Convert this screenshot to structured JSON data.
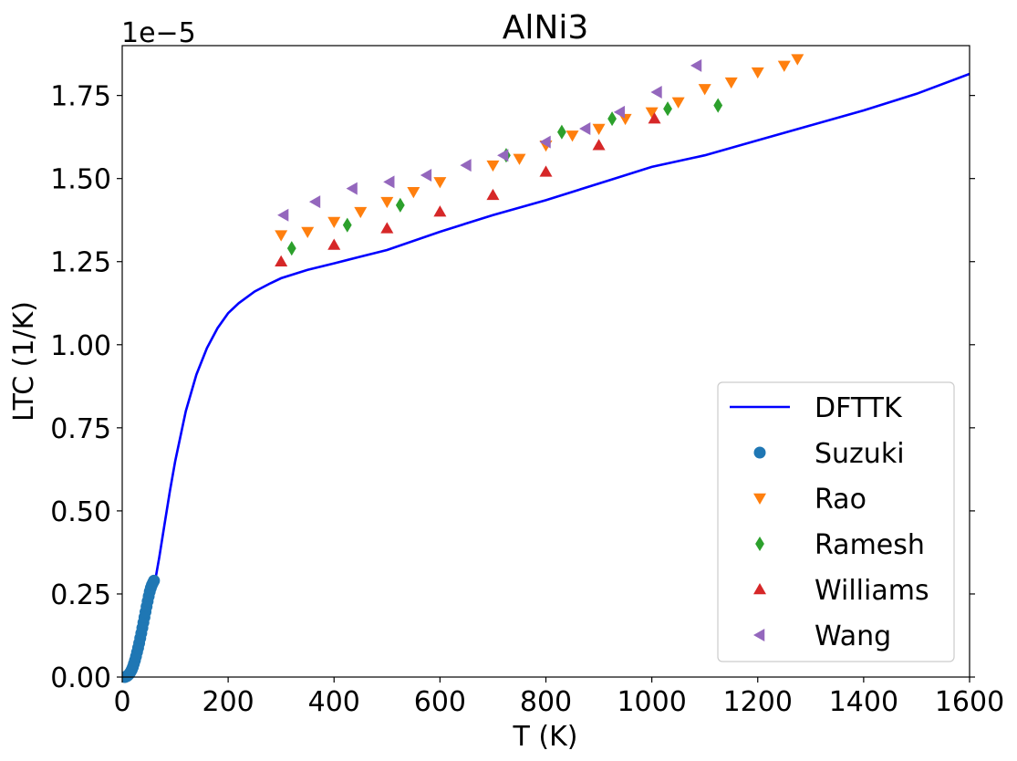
{
  "chart_data": {
    "type": "scatter",
    "title": "AlNi3",
    "xlabel": "T (K)",
    "ylabel": "LTC (1/K)",
    "y_offset_label": "1e−5",
    "xlim": [
      0,
      1600
    ],
    "ylim": [
      0,
      1.9
    ],
    "y_scale_factor": 1e-05,
    "xticks": [
      0,
      200,
      400,
      600,
      800,
      1000,
      1200,
      1400,
      1600
    ],
    "xtick_labels": [
      "0",
      "200",
      "400",
      "600",
      "800",
      "1000",
      "1200",
      "1400",
      "1600"
    ],
    "yticks": [
      0,
      0.25,
      0.5,
      0.75,
      1.0,
      1.25,
      1.5,
      1.75
    ],
    "ytick_labels": [
      "0.00",
      "0.25",
      "0.50",
      "0.75",
      "1.00",
      "1.25",
      "1.50",
      "1.75"
    ],
    "grid": false,
    "legend_position": "lower-right",
    "series": [
      {
        "name": "DFTTK",
        "kind": "line",
        "color": "#0000ff",
        "x": [
          0,
          10,
          20,
          30,
          40,
          50,
          60,
          70,
          80,
          90,
          100,
          120,
          140,
          160,
          180,
          200,
          220,
          250,
          280,
          300,
          350,
          400,
          450,
          500,
          600,
          700,
          800,
          900,
          920,
          1000,
          1100,
          1200,
          1300,
          1400,
          1500,
          1600
        ],
        "y": [
          0,
          0.005,
          0.02,
          0.06,
          0.12,
          0.19,
          0.27,
          0.36,
          0.46,
          0.56,
          0.65,
          0.8,
          0.91,
          0.99,
          1.05,
          1.095,
          1.125,
          1.16,
          1.185,
          1.2,
          1.225,
          1.245,
          1.265,
          1.285,
          1.34,
          1.39,
          1.435,
          1.485,
          1.495,
          1.535,
          1.57,
          1.615,
          1.66,
          1.705,
          1.755,
          1.815
        ]
      },
      {
        "name": "Suzuki",
        "kind": "marker",
        "marker": "circle",
        "color": "#1f77b4",
        "x": [
          5,
          8,
          10,
          12,
          14,
          16,
          18,
          20,
          22,
          24,
          26,
          28,
          30,
          32,
          34,
          36,
          38,
          40,
          42,
          44,
          46,
          48,
          50,
          52,
          54,
          56,
          58,
          60
        ],
        "y": [
          0,
          0.002,
          0.004,
          0.007,
          0.011,
          0.016,
          0.022,
          0.03,
          0.04,
          0.05,
          0.062,
          0.075,
          0.088,
          0.102,
          0.117,
          0.132,
          0.148,
          0.164,
          0.18,
          0.196,
          0.212,
          0.228,
          0.243,
          0.257,
          0.268,
          0.277,
          0.284,
          0.29
        ]
      },
      {
        "name": "Rao",
        "kind": "marker",
        "marker": "triangle-down",
        "color": "#ff7f0e",
        "x": [
          300,
          350,
          400,
          450,
          500,
          550,
          600,
          700,
          750,
          800,
          850,
          900,
          950,
          1000,
          1050,
          1100,
          1150,
          1200,
          1250,
          1275
        ],
        "y": [
          1.33,
          1.34,
          1.37,
          1.4,
          1.43,
          1.46,
          1.49,
          1.54,
          1.56,
          1.6,
          1.63,
          1.65,
          1.68,
          1.7,
          1.73,
          1.77,
          1.79,
          1.82,
          1.84,
          1.86
        ]
      },
      {
        "name": "Ramesh",
        "kind": "marker",
        "marker": "diamond",
        "color": "#2ca02c",
        "x": [
          320,
          425,
          525,
          725,
          830,
          925,
          1030,
          1125
        ],
        "y": [
          1.29,
          1.36,
          1.42,
          1.57,
          1.64,
          1.68,
          1.71,
          1.72
        ]
      },
      {
        "name": "Williams",
        "kind": "marker",
        "marker": "triangle-up",
        "color": "#d62728",
        "x": [
          300,
          400,
          500,
          600,
          700,
          800,
          900,
          1005
        ],
        "y": [
          1.25,
          1.3,
          1.35,
          1.4,
          1.45,
          1.52,
          1.6,
          1.68
        ]
      },
      {
        "name": "Wang",
        "kind": "marker",
        "marker": "triangle-left",
        "color": "#9467bd",
        "x": [
          305,
          365,
          435,
          505,
          575,
          650,
          720,
          800,
          875,
          940,
          1010,
          1085
        ],
        "y": [
          1.39,
          1.43,
          1.47,
          1.49,
          1.51,
          1.54,
          1.57,
          1.61,
          1.65,
          1.7,
          1.76,
          1.84
        ]
      }
    ]
  }
}
